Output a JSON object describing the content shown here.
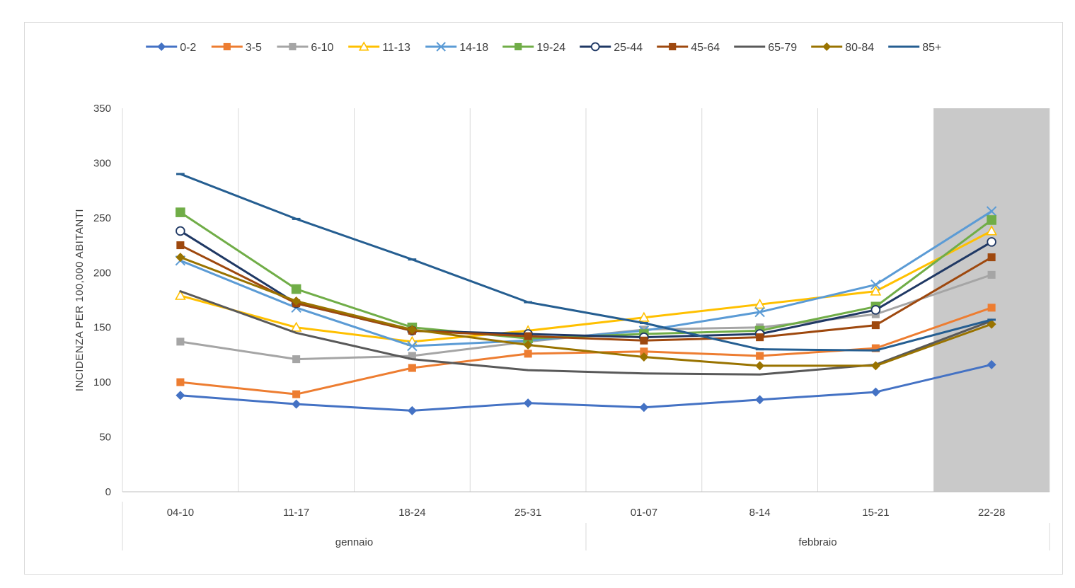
{
  "chart_data": {
    "type": "line",
    "title": "",
    "xlabel": "",
    "ylabel": "INCIDENZA PER 100,000 ABITANTI",
    "ylim": [
      0,
      350
    ],
    "yticks": [
      0,
      50,
      100,
      150,
      200,
      250,
      300,
      350
    ],
    "categories": [
      "04-10",
      "11-17",
      "18-24",
      "25-31",
      "01-07",
      "8-14",
      "15-21",
      "22-28"
    ],
    "groups": [
      {
        "label": "gennaio",
        "from": 0,
        "to": 3
      },
      {
        "label": "febbraio",
        "from": 4,
        "to": 7
      }
    ],
    "highlight": {
      "from": 7,
      "to": 7,
      "color": "#c9c9c9"
    },
    "grid": "vertical",
    "legend": "top",
    "series": [
      {
        "name": "0-2",
        "color": "#4472c4",
        "marker": "diamond",
        "values": [
          88,
          80,
          74,
          81,
          77,
          84,
          91,
          116
        ]
      },
      {
        "name": "3-5",
        "color": "#ed7d31",
        "marker": "square",
        "values": [
          100,
          89,
          113,
          126,
          128,
          124,
          131,
          168
        ]
      },
      {
        "name": "6-10",
        "color": "#a5a5a5",
        "marker": "square",
        "values": [
          137,
          121,
          124,
          137,
          148,
          150,
          162,
          198
        ]
      },
      {
        "name": "11-13",
        "color": "#ffc000",
        "marker": "triangle-open",
        "values": [
          179,
          150,
          137,
          147,
          159,
          171,
          183,
          238
        ]
      },
      {
        "name": "14-18",
        "color": "#5b9bd5",
        "marker": "x",
        "values": [
          211,
          168,
          133,
          138,
          147,
          164,
          189,
          256
        ]
      },
      {
        "name": "19-24",
        "color": "#70ad47",
        "marker": "square",
        "values": [
          255,
          185,
          150,
          140,
          144,
          147,
          169,
          248
        ]
      },
      {
        "name": "25-44",
        "color": "#1f3864",
        "marker": "circle-open",
        "values": [
          238,
          172,
          147,
          144,
          141,
          144,
          166,
          228
        ]
      },
      {
        "name": "45-64",
        "color": "#9e480e",
        "marker": "square",
        "values": [
          225,
          172,
          147,
          142,
          138,
          141,
          152,
          214
        ]
      },
      {
        "name": "65-79",
        "color": "#595959",
        "marker": "none",
        "values": [
          183,
          145,
          121,
          111,
          108,
          107,
          116,
          156
        ]
      },
      {
        "name": "80-84",
        "color": "#997300",
        "marker": "diamond",
        "values": [
          214,
          174,
          148,
          134,
          123,
          115,
          115,
          153
        ]
      },
      {
        "name": "85+",
        "color": "#255e91",
        "marker": "dash",
        "values": [
          290,
          249,
          212,
          173,
          154,
          130,
          129,
          157
        ]
      }
    ]
  }
}
